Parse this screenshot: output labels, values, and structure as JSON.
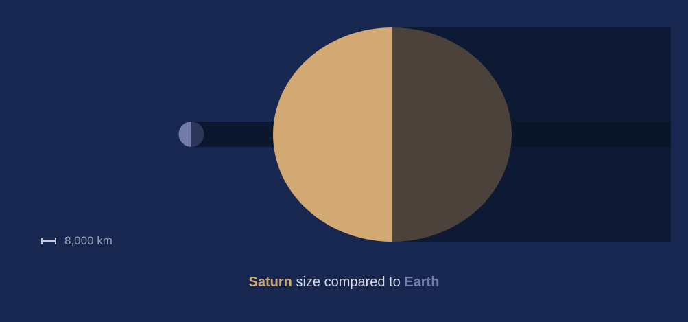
{
  "scale": {
    "label": "8,000 km",
    "icon": "ruler-icon"
  },
  "caption": {
    "planet": "Saturn",
    "middle": " size compared to ",
    "reference": "Earth"
  },
  "planets": {
    "saturn": {
      "name": "Saturn",
      "lit_color": "#d2a873",
      "shadow_color": "#4b433b"
    },
    "earth": {
      "name": "Earth",
      "lit_color": "#737ba9",
      "shadow_color": "#2c3658"
    }
  },
  "colors": {
    "background": "#18274f",
    "shadow_band": "#0e1a33",
    "shadow_band_dark": "#0b1529"
  }
}
